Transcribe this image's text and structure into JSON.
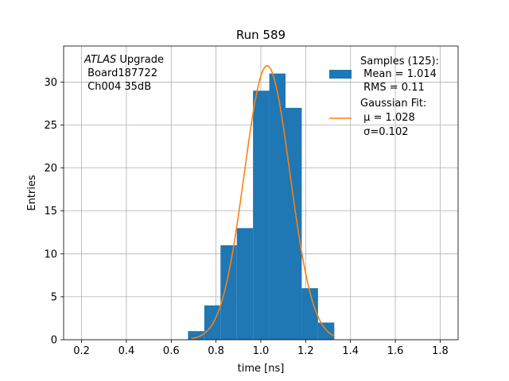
{
  "chart_data": {
    "type": "bar",
    "title": "Run 589",
    "xlabel": "time [ns]",
    "ylabel": "Entries",
    "xlim": [
      0.12,
      1.88
    ],
    "ylim": [
      0,
      34.2
    ],
    "xticks": [
      0.2,
      0.4,
      0.6,
      0.8,
      1.0,
      1.2,
      1.4,
      1.6,
      1.8
    ],
    "xtick_labels": [
      "0.2",
      "0.4",
      "0.6",
      "0.8",
      "1.0",
      "1.2",
      "1.4",
      "1.6",
      "1.8"
    ],
    "yticks": [
      0,
      5,
      10,
      15,
      20,
      25,
      30
    ],
    "ytick_labels": [
      "0",
      "5",
      "10",
      "15",
      "20",
      "25",
      "30"
    ],
    "grid": true,
    "histogram": {
      "bin_edges": [
        0.675,
        0.7475,
        0.82,
        0.8925,
        0.965,
        1.0375,
        1.11,
        1.1825,
        1.255,
        1.3275
      ],
      "counts": [
        1,
        4,
        11,
        13,
        29,
        31,
        27,
        6,
        2,
        1
      ],
      "color": "#1f77b4"
    },
    "fit": {
      "mu": 1.028,
      "sigma": 0.102,
      "x_range": [
        0.69,
        1.33
      ],
      "color": "#ff7f0e"
    },
    "legend": {
      "position": "upper right",
      "samples_lines": [
        "Samples (125):",
        " Mean = 1.014",
        " RMS = 0.11"
      ],
      "fit_lines": [
        "Gaussian Fit:",
        " μ = 1.028",
        " σ=0.102"
      ]
    },
    "annotation": {
      "atlas_label": "ATLAS",
      "upgrade_label": " Upgrade",
      "board_label": " Board187722",
      "channel_label": " Ch004 35dB"
    }
  }
}
